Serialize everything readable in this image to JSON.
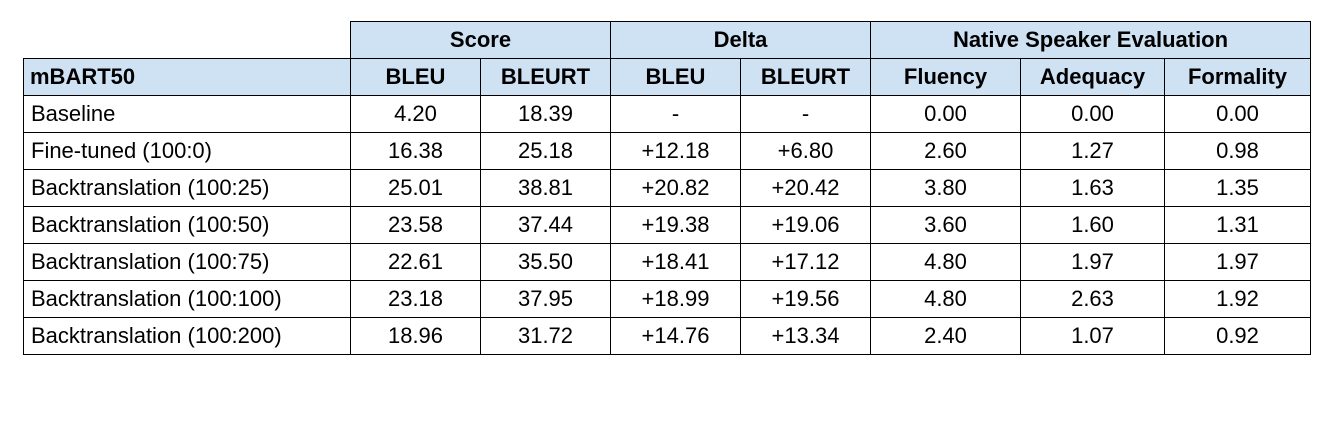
{
  "table": {
    "group_headers": [
      "Score",
      "Delta",
      "Native Speaker Evaluation"
    ],
    "row_header_label": "mBART50",
    "columns": [
      "BLEU",
      "BLEURT",
      "BLEU",
      "BLEURT",
      "Fluency",
      "Adequacy",
      "Formality"
    ],
    "rows": [
      {
        "model": "Baseline",
        "values": [
          "4.20",
          "18.39",
          "-",
          "-",
          "0.00",
          "0.00",
          "0.00"
        ]
      },
      {
        "model": "Fine-tuned (100:0)",
        "values": [
          "16.38",
          "25.18",
          "+12.18",
          "+6.80",
          "2.60",
          "1.27",
          "0.98"
        ]
      },
      {
        "model": "Backtranslation (100:25)",
        "values": [
          "25.01",
          "38.81",
          "+20.82",
          "+20.42",
          "3.80",
          "1.63",
          "1.35"
        ]
      },
      {
        "model": "Backtranslation (100:50)",
        "values": [
          "23.58",
          "37.44",
          "+19.38",
          "+19.06",
          "3.60",
          "1.60",
          "1.31"
        ]
      },
      {
        "model": "Backtranslation (100:75)",
        "values": [
          "22.61",
          "35.50",
          "+18.41",
          "+17.12",
          "4.80",
          "1.97",
          "1.97"
        ]
      },
      {
        "model": "Backtranslation (100:100)",
        "values": [
          "23.18",
          "37.95",
          "+18.99",
          "+19.56",
          "4.80",
          "2.63",
          "1.92"
        ]
      },
      {
        "model": "Backtranslation (100:200)",
        "values": [
          "18.96",
          "31.72",
          "+14.76",
          "+13.34",
          "2.40",
          "1.07",
          "0.92"
        ]
      }
    ]
  },
  "colors": {
    "header_fill": "#cfe2f3",
    "border": "#000000"
  }
}
